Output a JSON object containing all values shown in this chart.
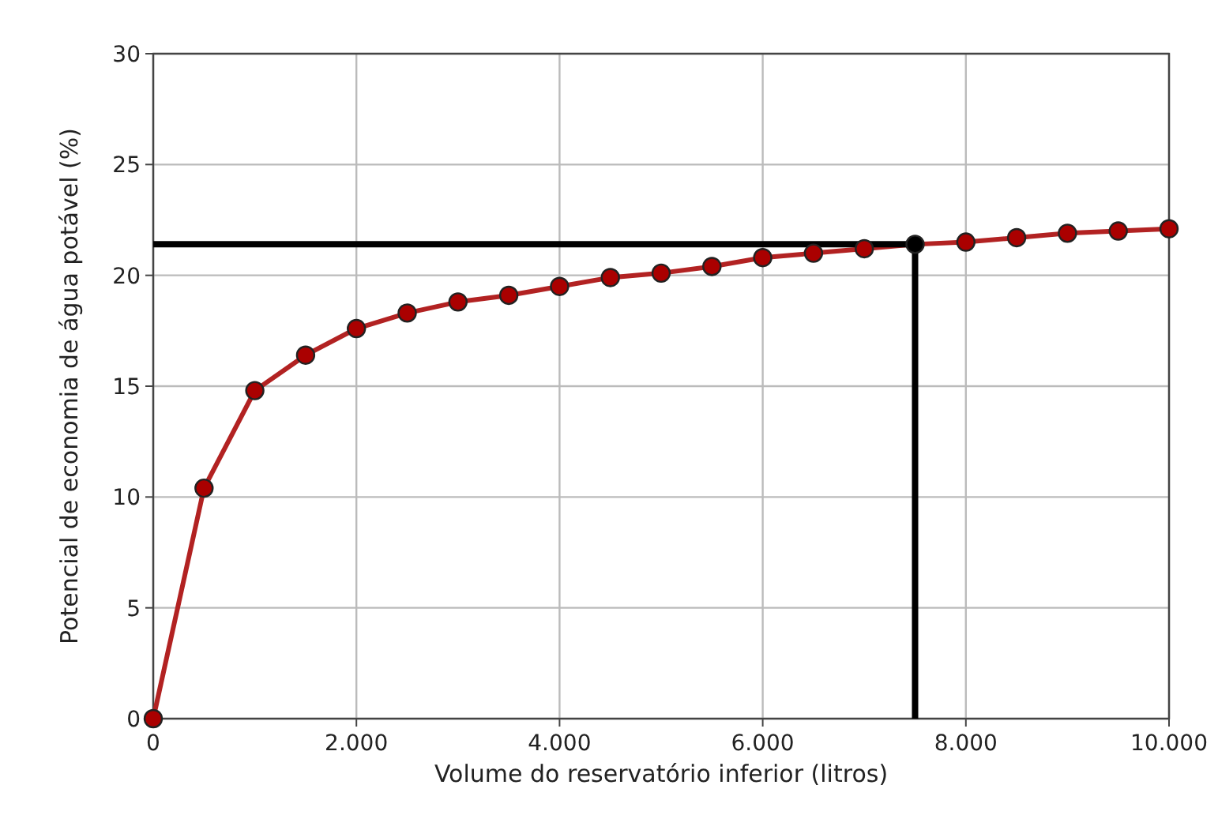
{
  "chart_data": {
    "type": "line",
    "xlabel": "Volume do reservatório inferior (litros)",
    "ylabel": "Potencial de economia de água potável (%)",
    "x": [
      0,
      500,
      1000,
      1500,
      2000,
      2500,
      3000,
      3500,
      4000,
      4500,
      5000,
      5500,
      6000,
      6500,
      7000,
      7500,
      8000,
      8500,
      9000,
      9500,
      10000
    ],
    "series": [
      {
        "color": "#b22222",
        "values": [
          0,
          10.4,
          14.8,
          16.4,
          17.6,
          18.3,
          18.8,
          19.1,
          19.5,
          19.9,
          20.1,
          20.4,
          20.8,
          21.0,
          21.2,
          21.4,
          21.5,
          21.7,
          21.9,
          22.0,
          22.1
        ],
        "colors": [
          "#aa0000",
          "#aa0000",
          "#aa0000",
          "#aa0000",
          "#aa0000",
          "#aa0000",
          "#aa0000",
          "#aa0000",
          "#aa0000",
          "#aa0000",
          "#aa0000",
          "#aa0000",
          "#aa0000",
          "#aa0000",
          "#aa0000",
          "#000000",
          "#aa0000",
          "#aa0000",
          "#aa0000",
          "#aa0000",
          "#aa0000"
        ]
      }
    ],
    "xlim": [
      0,
      10000
    ],
    "xticks": [
      {
        "value": 0,
        "label": "0"
      },
      {
        "value": 2000,
        "label": "2.000"
      },
      {
        "value": 4000,
        "label": "4.000"
      },
      {
        "value": 6000,
        "label": "6.000"
      },
      {
        "value": 8000,
        "label": "8.000"
      },
      {
        "value": 10000,
        "label": "10.000"
      }
    ],
    "ylim": [
      0,
      30
    ],
    "yticks": [
      0,
      5,
      10,
      15,
      20,
      25,
      30
    ],
    "grid": true,
    "marker": "circle",
    "line_style": "solid",
    "ref_lines": [
      {
        "axis": "y",
        "value": 21.4,
        "color": "#000000"
      },
      {
        "axis": "x",
        "value": 7500,
        "color": "#000000"
      }
    ]
  }
}
